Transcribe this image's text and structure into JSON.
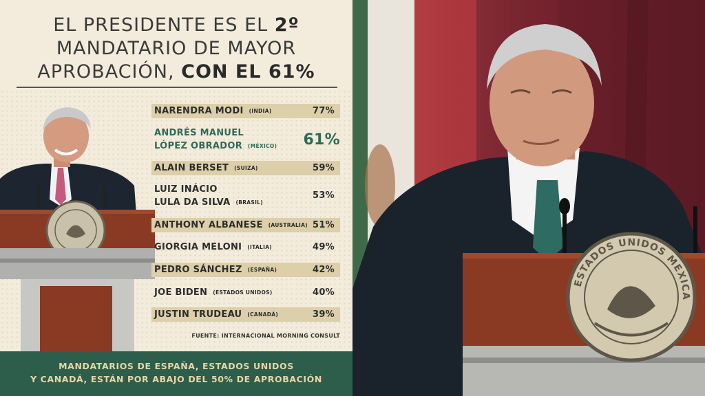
{
  "headline": {
    "line1_prefix": "EL PRESIDENTE ES EL ",
    "line1_bold": "2º",
    "line2": "MANDATARIO DE MAYOR",
    "line3_prefix": "APROBACIÓN, ",
    "line3_bold": "CON EL 61%"
  },
  "ranking": [
    {
      "name": "NARENDRA MODI",
      "country": "(INDIA)",
      "pct": "77%"
    },
    {
      "name_line1": "ANDRÉS MANUEL",
      "name_line2": "LÓPEZ OBRADOR",
      "country": "(MÉXICO)",
      "pct": "61%"
    },
    {
      "name": "ALAIN BERSET",
      "country": "(SUIZA)",
      "pct": "59%"
    },
    {
      "name_line1": "LUIZ INÁCIO",
      "name_line2": "LULA DA SILVA",
      "country": "(BRASIL)",
      "pct": "53%"
    },
    {
      "name": "ANTHONY ALBANESE",
      "country": "(AUSTRALIA)",
      "pct": "51%"
    },
    {
      "name": "GIORGIA MELONI",
      "country": "(ITALIA)",
      "pct": "49%"
    },
    {
      "name": "PEDRO SÁNCHEZ",
      "country": "(ESPAÑA)",
      "pct": "42%"
    },
    {
      "name": "JOE BIDEN",
      "country": "(ESTADOS UNIDOS)",
      "pct": "40%"
    },
    {
      "name": "JUSTIN TRUDEAU",
      "country": "(CANADÁ)",
      "pct": "39%"
    }
  ],
  "source": "FUENTE: INTERNACIONAL MORNING CONSULT",
  "footer": {
    "line1_prefix": "MANDATARIOS DE ",
    "line1_highlight": "ESPAÑA, ESTADOS UNIDOS",
    "line2_highlight_a": "Y CANADÁ,",
    "line2_mid": " ESTÁN POR ",
    "line2_highlight_b": "ABAJO DEL 50%",
    "line2_suffix": " DE APROBACIÓN"
  },
  "seal_text": "ESTADOS UNIDOS MEXICANOS",
  "colors": {
    "background": "#f3ecdc",
    "band": "#dccfa9",
    "featured": "#2f6a55",
    "footer": "#2d5e4c",
    "podium": "#8a3a22"
  }
}
